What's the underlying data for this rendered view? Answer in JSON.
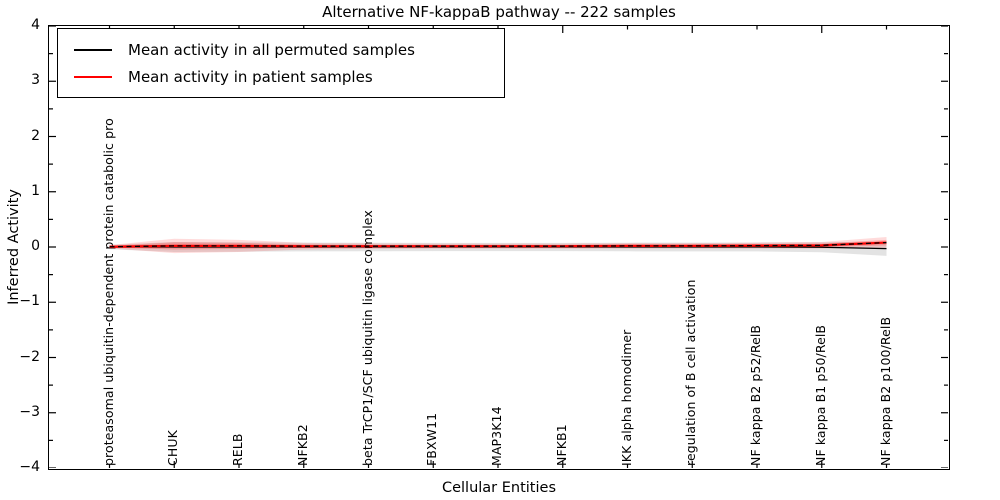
{
  "figure": {
    "title": "Alternative NF-kappaB pathway -- 222 samples",
    "xlabel": "Cellular Entities",
    "ylabel": "Inferred Activity"
  },
  "legend": {
    "items": [
      {
        "label": "Mean activity in all permuted samples",
        "color": "#000000"
      },
      {
        "label": "Mean activity in patient samples",
        "color": "#ff0000"
      }
    ],
    "position": "upper left"
  },
  "chart_data": {
    "type": "line",
    "title": "Alternative NF-kappaB pathway -- 222 samples",
    "xlabel": "Cellular Entities",
    "ylabel": "Inferred Activity",
    "ylim": [
      -4,
      4
    ],
    "ytick_labels": [
      "4",
      "3",
      "2",
      "1",
      "0",
      "−1",
      "−2",
      "−3",
      "−4"
    ],
    "ytick_values": [
      4,
      3,
      2,
      1,
      0,
      -1,
      -2,
      -3,
      -4
    ],
    "grid": false,
    "legend_position": "upper left",
    "categories": [
      "proteasomal ubiquitin-dependent protein catabolic pro",
      "CHUK",
      "RELB",
      "NFKB2",
      "beta TrCP1/SCF ubiquitin ligase complex",
      "FBXW11",
      "MAP3K14",
      "NFKB1",
      "IKK alpha homodimer",
      "regulation of B cell activation",
      "NF kappa B2 p52/RelB",
      "NF kappa B1 p50/RelB",
      "NF kappa B2 p100/RelB"
    ],
    "series": [
      {
        "name": "Mean activity in all permuted samples",
        "line_color": "#000000",
        "line_style": "solid",
        "band_color": "rgba(115,115,115,0.20)",
        "values": [
          0,
          0,
          0,
          0,
          0,
          0,
          0,
          0,
          0,
          0,
          0,
          -0.005,
          -0.03
        ],
        "std": [
          0.04,
          0.09,
          0.085,
          0.08,
          0.078,
          0.075,
          0.075,
          0.075,
          0.078,
          0.08,
          0.08,
          0.09,
          0.13
        ]
      },
      {
        "name": "Mean activity in patient samples",
        "line_color": "#ff0000",
        "line_style": "solid, overlaid by black dashed line",
        "band_color": "rgba(255,0,0,0.14)",
        "inner_band_color": "rgba(255,0,0,0.22)",
        "values": [
          0.005,
          0.02,
          0.02,
          0.015,
          0.015,
          0.015,
          0.015,
          0.015,
          0.02,
          0.02,
          0.025,
          0.03,
          0.08
        ],
        "std": [
          0.03,
          0.13,
          0.11,
          0.06,
          0.05,
          0.045,
          0.045,
          0.045,
          0.05,
          0.05,
          0.055,
          0.06,
          0.1
        ]
      }
    ]
  }
}
